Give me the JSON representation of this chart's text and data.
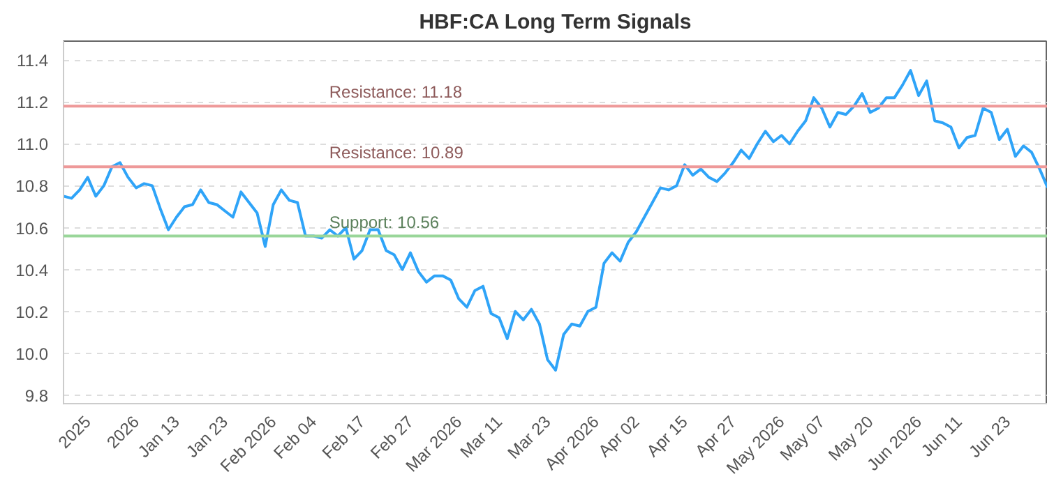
{
  "chart_data": {
    "type": "line",
    "title": "HBF:CA Long Term Signals",
    "categories": [
      null,
      null,
      null,
      "2025",
      null,
      null,
      null,
      null,
      null,
      "2026",
      null,
      null,
      null,
      null,
      "Jan 13",
      null,
      null,
      null,
      null,
      null,
      "Jan 23",
      null,
      null,
      null,
      null,
      null,
      "Feb 2026",
      null,
      null,
      null,
      null,
      "Feb 04",
      null,
      null,
      null,
      null,
      null,
      "Feb 17",
      null,
      null,
      null,
      null,
      null,
      "Feb 27",
      null,
      null,
      null,
      null,
      null,
      "Mar 2026",
      null,
      null,
      null,
      null,
      "Mar 11",
      null,
      null,
      null,
      null,
      null,
      "Mar 23",
      null,
      null,
      null,
      null,
      null,
      "Apr 2026",
      null,
      null,
      null,
      null,
      "Apr 02",
      null,
      null,
      null,
      null,
      null,
      "Apr 15",
      null,
      null,
      null,
      null,
      null,
      "Apr 27",
      null,
      null,
      null,
      null,
      null,
      "May 2026",
      null,
      null,
      null,
      null,
      "May 07",
      null,
      null,
      null,
      null,
      null,
      "May 20",
      null,
      null,
      null,
      null,
      null,
      "Jun 2026",
      null,
      null,
      null,
      null,
      "Jun 11",
      null,
      null,
      null,
      null,
      null,
      "Jun 23",
      null,
      null,
      null,
      null,
      null
    ],
    "series": [
      {
        "color": "#2fa4f8",
        "values": [
          10.75,
          10.74,
          10.78,
          10.84,
          10.75,
          10.8,
          10.89,
          10.91,
          10.84,
          10.79,
          10.81,
          10.8,
          10.69,
          10.59,
          10.65,
          10.7,
          10.71,
          10.78,
          10.72,
          10.71,
          10.68,
          10.65,
          10.77,
          10.72,
          10.67,
          10.51,
          10.71,
          10.78,
          10.73,
          10.72,
          10.56,
          10.56,
          10.55,
          10.59,
          10.56,
          10.6,
          10.45,
          10.49,
          10.59,
          10.59,
          10.49,
          10.47,
          10.4,
          10.48,
          10.39,
          10.34,
          10.37,
          10.37,
          10.35,
          10.26,
          10.22,
          10.3,
          10.32,
          10.19,
          10.17,
          10.07,
          10.2,
          10.16,
          10.21,
          10.14,
          9.97,
          9.92,
          10.09,
          10.14,
          10.13,
          10.2,
          10.22,
          10.43,
          10.48,
          10.44,
          10.53,
          10.58,
          10.65,
          10.72,
          10.79,
          10.78,
          10.8,
          10.9,
          10.85,
          10.88,
          10.84,
          10.82,
          10.86,
          10.91,
          10.97,
          10.93,
          11.0,
          11.06,
          11.01,
          11.04,
          11.0,
          11.06,
          11.11,
          11.22,
          11.17,
          11.08,
          11.15,
          11.14,
          11.18,
          11.24,
          11.15,
          11.17,
          11.22,
          11.22,
          11.28,
          11.35,
          11.23,
          11.3,
          11.11,
          11.1,
          11.08,
          10.98,
          11.03,
          11.04,
          11.17,
          11.15,
          11.02,
          11.07,
          10.94,
          10.99,
          10.96,
          10.88,
          10.79
        ]
      }
    ],
    "ylim": [
      9.76,
      11.49
    ],
    "yticks": [
      9.8,
      {
        "value": 10,
        "label": "10.0"
      },
      10.2,
      10.4,
      10.6,
      10.8,
      {
        "value": 11,
        "label": "11.0"
      },
      11.2,
      11.4
    ],
    "ref_lines": [
      {
        "axis": "y",
        "value": 11.18,
        "label": "Resistance: 11.18",
        "color": "#ee9999"
      },
      {
        "axis": "y",
        "value": 10.89,
        "label": "Resistance: 10.89",
        "color": "#ee9999"
      },
      {
        "axis": "y",
        "value": 10.56,
        "label": "Support: 10.56",
        "color": "#99d699"
      }
    ],
    "grid": "y",
    "marker": "none",
    "line_style": "solid"
  }
}
